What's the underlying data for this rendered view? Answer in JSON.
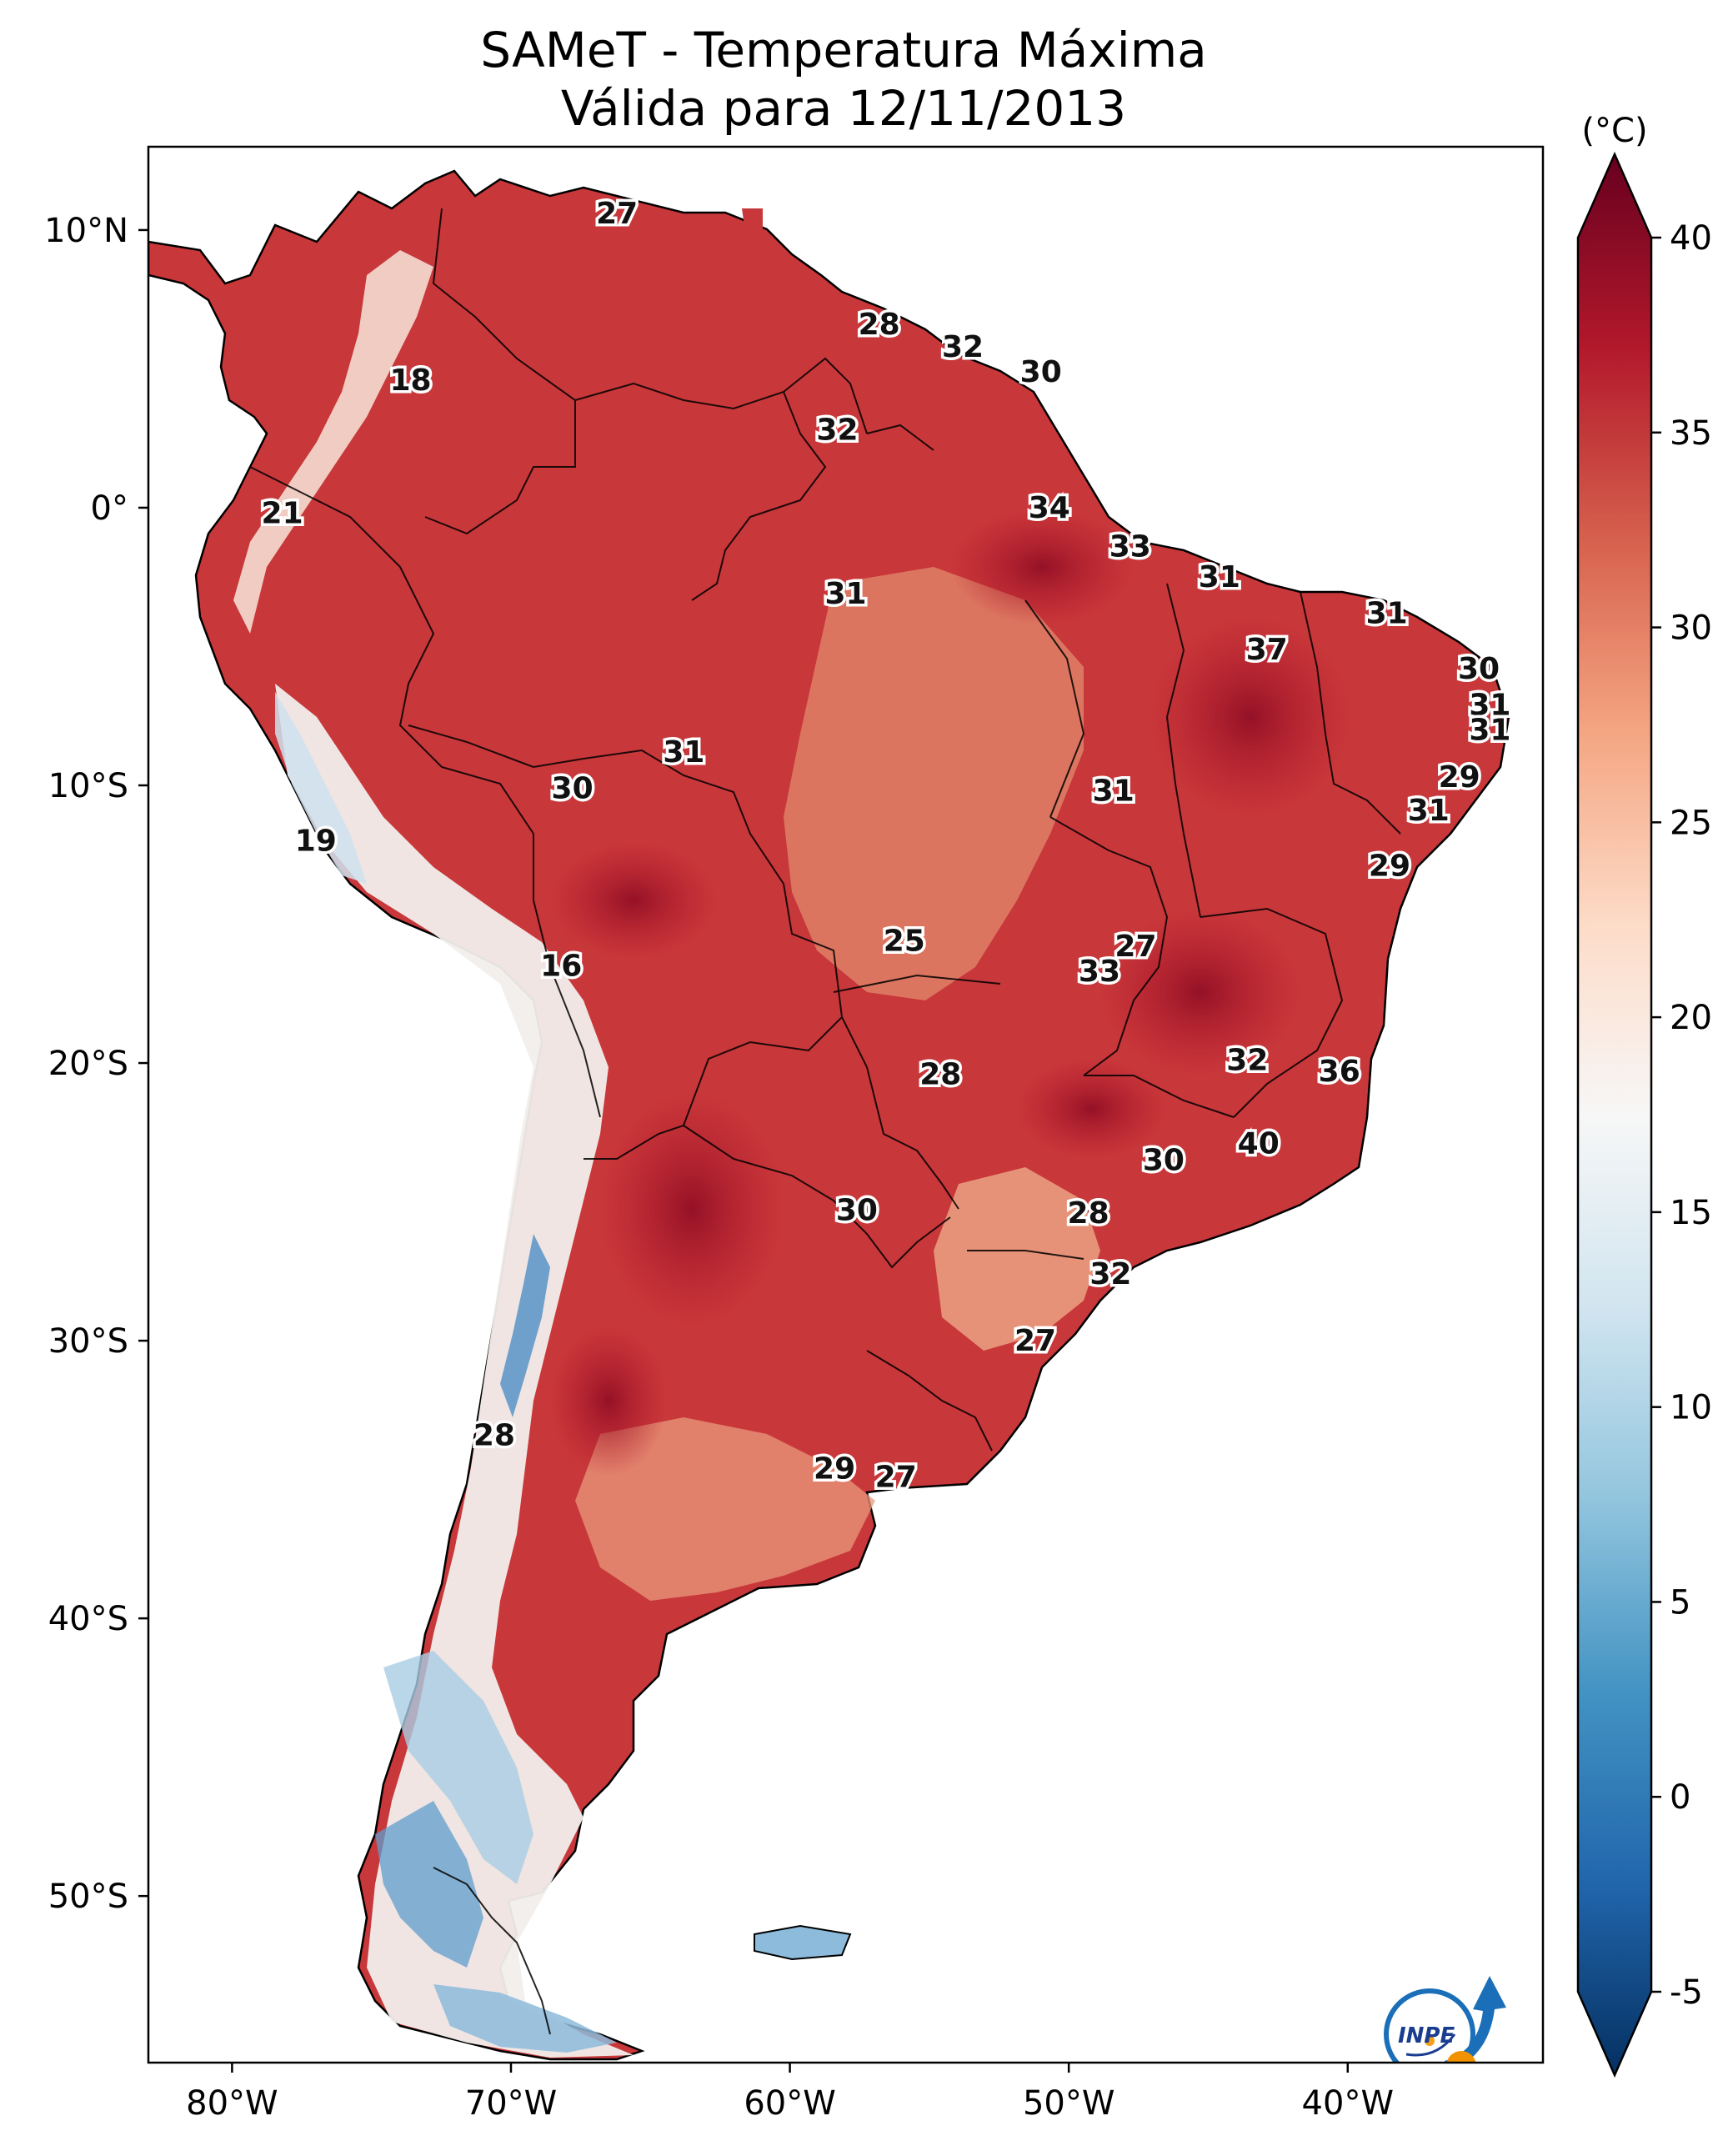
{
  "title": {
    "line1": "SAMeT - Temperatura Máxima",
    "line2": "Válida para 12/11/2013"
  },
  "axes": {
    "lon_ticks": [
      {
        "lon": -80,
        "label": "80°W"
      },
      {
        "lon": -70,
        "label": "70°W"
      },
      {
        "lon": -60,
        "label": "60°W"
      },
      {
        "lon": -50,
        "label": "50°W"
      },
      {
        "lon": -40,
        "label": "40°W"
      }
    ],
    "lat_ticks": [
      {
        "lat": 10,
        "label": "10°N"
      },
      {
        "lat": 0,
        "label": "0°"
      },
      {
        "lat": -10,
        "label": "10°S"
      },
      {
        "lat": -20,
        "label": "20°S"
      },
      {
        "lat": -30,
        "label": "30°S"
      },
      {
        "lat": -40,
        "label": "40°S"
      },
      {
        "lat": -50,
        "label": "50°S"
      }
    ],
    "lon_range": [
      -83,
      -33
    ],
    "lat_range": [
      -56,
      13
    ]
  },
  "colorbar": {
    "unit": "(°C)",
    "range": [
      -5,
      40
    ],
    "ticks": [
      {
        "value": 40,
        "label": "40"
      },
      {
        "value": 35,
        "label": "35"
      },
      {
        "value": 30,
        "label": "30"
      },
      {
        "value": 25,
        "label": "25"
      },
      {
        "value": 20,
        "label": "20"
      },
      {
        "value": 15,
        "label": "15"
      },
      {
        "value": 10,
        "label": "10"
      },
      {
        "value": 5,
        "label": "5"
      },
      {
        "value": 0,
        "label": "0"
      },
      {
        "value": -5,
        "label": "-5"
      }
    ],
    "colors": [
      "#053061",
      "#2166ac",
      "#4393c3",
      "#92c5de",
      "#d1e5f0",
      "#f7f7f7",
      "#fddbc7",
      "#f4a582",
      "#d6604d",
      "#b2182b",
      "#67001f"
    ]
  },
  "logo": {
    "text": "INPE",
    "icon": "inpe-logo-icon"
  },
  "chart_data": {
    "type": "heatmap",
    "value_unit": "°C",
    "station_values": [
      {
        "lon": -66.2,
        "lat": 10.6,
        "label": "27"
      },
      {
        "lon": -56.8,
        "lat": 6.6,
        "label": "28"
      },
      {
        "lon": -53.8,
        "lat": 5.8,
        "label": "32"
      },
      {
        "lon": -51.0,
        "lat": 4.9,
        "label": "30"
      },
      {
        "lon": -73.6,
        "lat": 4.6,
        "label": "18"
      },
      {
        "lon": -58.3,
        "lat": 2.8,
        "label": "32"
      },
      {
        "lon": -50.7,
        "lat": 0.0,
        "label": "34"
      },
      {
        "lon": -78.2,
        "lat": -0.2,
        "label": "21"
      },
      {
        "lon": -47.8,
        "lat": -1.4,
        "label": "33"
      },
      {
        "lon": -44.6,
        "lat": -2.5,
        "label": "31"
      },
      {
        "lon": -58.0,
        "lat": -3.1,
        "label": "31"
      },
      {
        "lon": -38.6,
        "lat": -3.8,
        "label": "31"
      },
      {
        "lon": -42.9,
        "lat": -5.1,
        "label": "37"
      },
      {
        "lon": -35.3,
        "lat": -5.8,
        "label": "30"
      },
      {
        "lon": -34.9,
        "lat": -7.1,
        "label": "31"
      },
      {
        "lon": -34.9,
        "lat": -8.0,
        "label": "31"
      },
      {
        "lon": -63.8,
        "lat": -8.8,
        "label": "31"
      },
      {
        "lon": -36.0,
        "lat": -9.7,
        "label": "29"
      },
      {
        "lon": -67.8,
        "lat": -10.1,
        "label": "30"
      },
      {
        "lon": -48.4,
        "lat": -10.2,
        "label": "31"
      },
      {
        "lon": -37.1,
        "lat": -10.9,
        "label": "31"
      },
      {
        "lon": -77.0,
        "lat": -12.0,
        "label": "19"
      },
      {
        "lon": -38.5,
        "lat": -12.9,
        "label": "29"
      },
      {
        "lon": -55.9,
        "lat": -15.6,
        "label": "25"
      },
      {
        "lon": -47.6,
        "lat": -15.8,
        "label": "27"
      },
      {
        "lon": -48.9,
        "lat": -16.7,
        "label": "33"
      },
      {
        "lon": -68.2,
        "lat": -16.5,
        "label": "16"
      },
      {
        "lon": -43.6,
        "lat": -19.9,
        "label": "32"
      },
      {
        "lon": -40.3,
        "lat": -20.3,
        "label": "36"
      },
      {
        "lon": -54.6,
        "lat": -20.4,
        "label": "28"
      },
      {
        "lon": -43.2,
        "lat": -22.9,
        "label": "40"
      },
      {
        "lon": -46.6,
        "lat": -23.5,
        "label": "30"
      },
      {
        "lon": -57.6,
        "lat": -25.3,
        "label": "30"
      },
      {
        "lon": -49.3,
        "lat": -25.4,
        "label": "28"
      },
      {
        "lon": -48.5,
        "lat": -27.6,
        "label": "32"
      },
      {
        "lon": -51.2,
        "lat": -30.0,
        "label": "27"
      },
      {
        "lon": -70.6,
        "lat": -33.4,
        "label": "28"
      },
      {
        "lon": -58.4,
        "lat": -34.6,
        "label": "29"
      },
      {
        "lon": -56.2,
        "lat": -34.9,
        "label": "27"
      }
    ]
  }
}
